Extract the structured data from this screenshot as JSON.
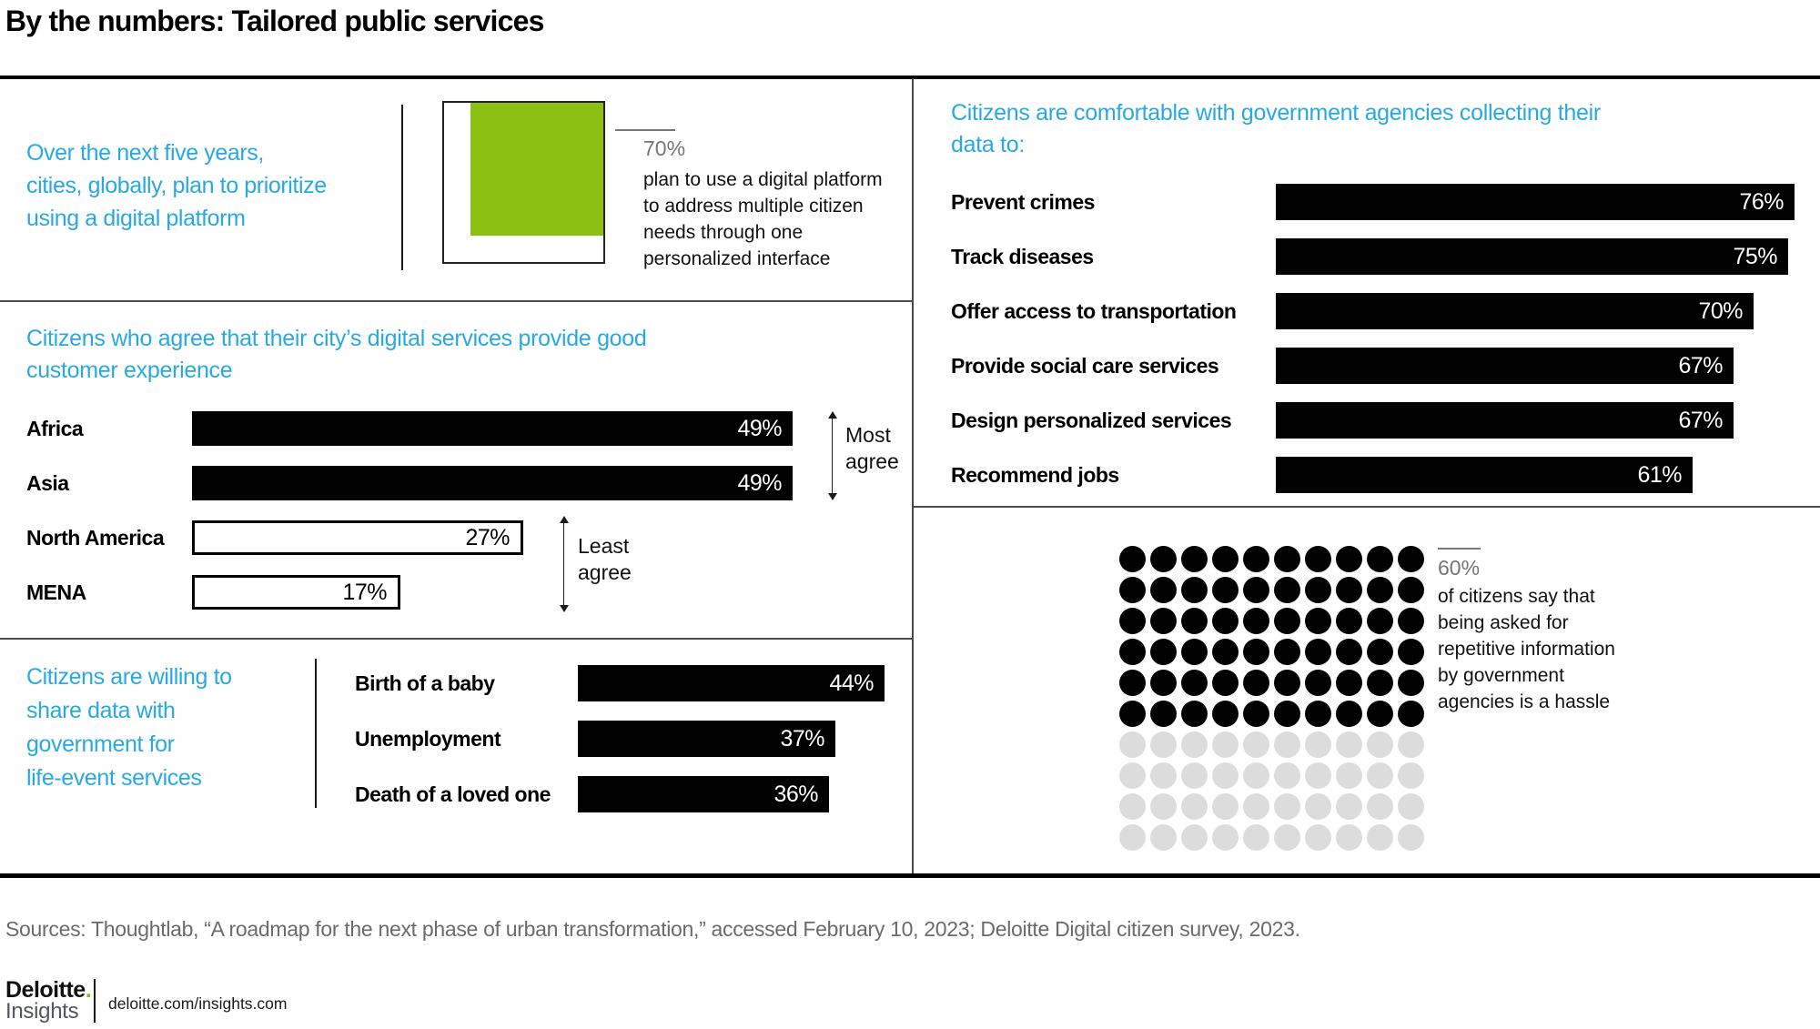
{
  "page": {
    "title": "By the numbers: Tailored public services",
    "sources": "Sources: Thoughtlab, “A roadmap for the next phase of urban transformation,” accessed February 10, 2023; Deloitte Digital citizen survey, 2023.",
    "footer": {
      "brand_name": "Deloitte",
      "brand_dot": ".",
      "brand_sub": "Insights",
      "url": "deloitte.com/insights.com"
    }
  },
  "colors": {
    "accent_blue": "#29A9E1",
    "green": "#8CC013",
    "bar_black": "#000000",
    "muted_gray": "#757575",
    "dot_gray": "#DCDCDC"
  },
  "sections": {
    "digital_platform": {
      "statement_lines": [
        "Over the next five years,",
        "cities, globally, plan to prioritize",
        "using a digital platform"
      ],
      "value_label": "70%",
      "caption_lines": [
        "plan to use a digital platform",
        "to address multiple citizen",
        "needs through one",
        "personalized interface"
      ]
    },
    "customer_experience": {
      "heading_lines": [
        "Citizens who agree that their city’s digital services provide good",
        "customer experience"
      ],
      "most_agree_label": "Most agree",
      "least_agree_label": "Least agree"
    },
    "life_event": {
      "heading_lines": [
        "Citizens are willing to",
        "share data with",
        "government for",
        "life-event services"
      ]
    },
    "data_collection": {
      "heading_lines": [
        "Citizens are comfortable with government agencies collecting their",
        "data to:"
      ]
    },
    "repetitive_info": {
      "value_label": "60%",
      "caption_lines": [
        "of citizens say that",
        "being asked for",
        "repetitive information",
        "by government",
        "agencies is a hassle"
      ]
    }
  },
  "chart_data": [
    {
      "id": "digital-platform-square",
      "type": "square-fill",
      "title": "Cities globally planning to prioritize using a digital platform over the next five years",
      "value": 70,
      "total": 100,
      "unit": "%"
    },
    {
      "id": "customer-experience-bars",
      "type": "bar",
      "orientation": "horizontal",
      "title": "Citizens who agree that their city’s digital services provide good customer experience",
      "categories": [
        "Africa",
        "Asia",
        "North America",
        "MENA"
      ],
      "values": [
        49,
        49,
        27,
        17
      ],
      "value_labels": [
        "49%",
        "49%",
        "27%",
        "17%"
      ],
      "styles": [
        "filled",
        "filled",
        "outline",
        "outline"
      ],
      "scale_max": 49,
      "unit": "%",
      "annotations": [
        "Most agree",
        "Least agree"
      ]
    },
    {
      "id": "life-event-bars",
      "type": "bar",
      "orientation": "horizontal",
      "title": "Citizens are willing to share data with government for life-event services",
      "categories": [
        "Birth of a baby",
        "Unemployment",
        "Death of a loved one"
      ],
      "values": [
        44,
        37,
        36
      ],
      "value_labels": [
        "44%",
        "37%",
        "36%"
      ],
      "styles": [
        "filled",
        "filled",
        "filled"
      ],
      "scale_max": 44,
      "unit": "%"
    },
    {
      "id": "data-collection-bars",
      "type": "bar",
      "orientation": "horizontal",
      "title": "Citizens are comfortable with government agencies collecting their data to:",
      "categories": [
        "Prevent crimes",
        "Track diseases",
        "Offer access to transportation",
        "Provide social care services",
        "Design personalized  services",
        "Recommend jobs"
      ],
      "values": [
        76,
        75,
        70,
        67,
        67,
        61
      ],
      "value_labels": [
        "76%",
        "75%",
        "70%",
        "67%",
        "67%",
        "61%"
      ],
      "styles": [
        "filled",
        "filled",
        "filled",
        "filled",
        "filled",
        "filled"
      ],
      "scale_max": 76,
      "unit": "%"
    },
    {
      "id": "repetitive-info-waffle",
      "type": "waffle",
      "title": "Citizens who say that being asked for repetitive information by government agencies is a hassle",
      "value": 60,
      "total": 100,
      "rows": 10,
      "cols": 10,
      "unit": "%"
    }
  ]
}
